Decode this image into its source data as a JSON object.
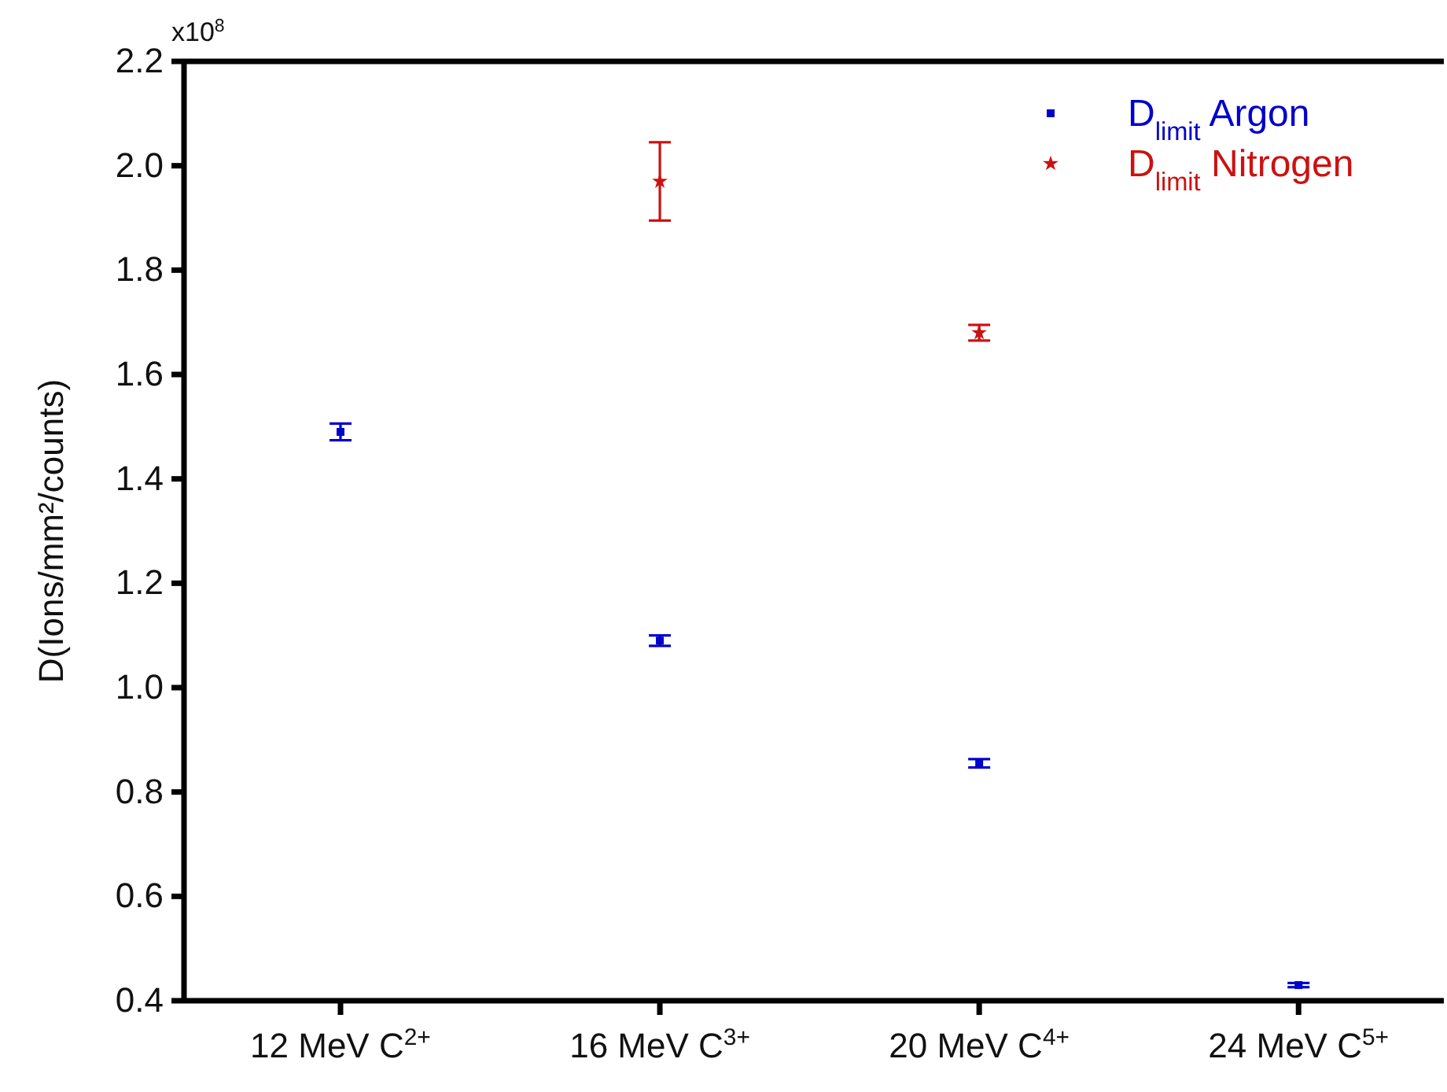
{
  "chart_data": {
    "type": "scatter",
    "categories": [
      "12 MeV C$^{2+}$",
      "16 MeV C$^{3+}$",
      "20 MeV C$^{4+}$",
      "24 MeV C$^{5+}$"
    ],
    "ylabel": "D(Ions/mm²/counts)",
    "annotations": [
      "x10$^{8}$"
    ],
    "ylim": [
      0.4,
      2.2
    ],
    "yticks": [
      {
        "value": 0.4,
        "label": "0.4"
      },
      {
        "value": 0.6,
        "label": "0.6"
      },
      {
        "value": 0.8,
        "label": "0.8"
      },
      {
        "value": 1.0,
        "label": "1.0"
      },
      {
        "value": 1.2,
        "label": "1.2"
      },
      {
        "value": 1.4,
        "label": "1.4"
      },
      {
        "value": 1.6,
        "label": "1.6"
      },
      {
        "value": 1.8,
        "label": "1.8"
      },
      {
        "value": 2.0,
        "label": "2.0"
      },
      {
        "value": 2.2,
        "label": "2.2"
      }
    ],
    "legend": "top right",
    "series": [
      {
        "name": "D$_{limit}$ Argon",
        "color": "#0000cc",
        "marker": "square",
        "values": [
          1.49,
          1.09,
          0.855,
          0.43
        ],
        "errors": [
          0.016,
          0.01,
          0.008,
          0.004
        ]
      },
      {
        "name": "D$_{limit}$ Nitrogen",
        "color": "#cc1111",
        "marker": "star",
        "values": [
          null,
          1.97,
          1.68,
          null
        ],
        "errors": [
          null,
          0.075,
          0.015,
          null
        ]
      }
    ]
  }
}
